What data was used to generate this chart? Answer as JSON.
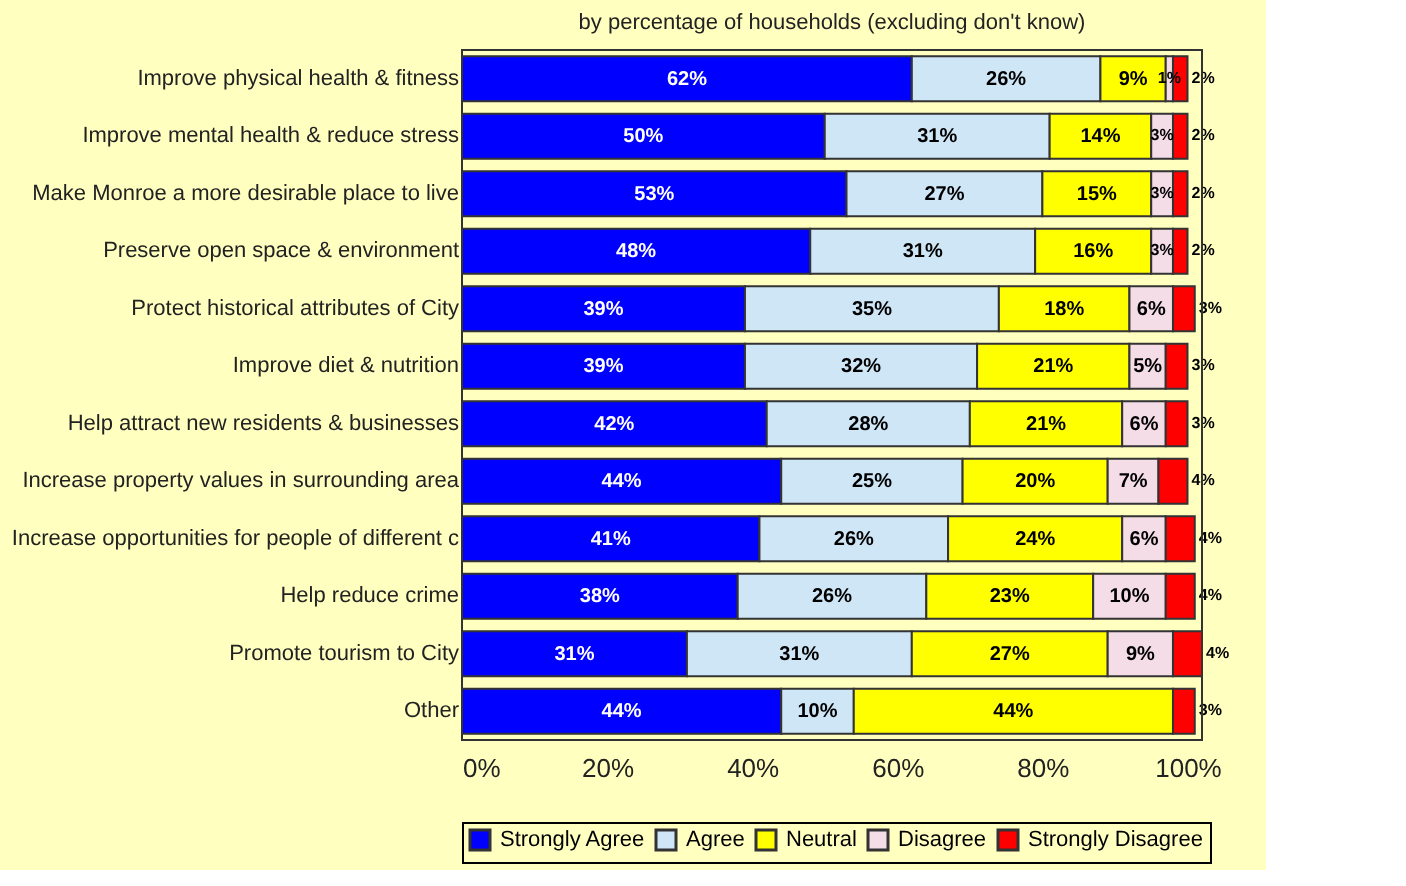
{
  "chart_data": {
    "type": "bar",
    "orientation": "horizontal",
    "stacked": true,
    "subtitle": "by percentage of households (excluding don't know)",
    "categories": [
      "Improve physical health & fitness",
      "Improve mental health & reduce stress",
      "Make Monroe a more desirable place to live",
      "Preserve open space & environment",
      "Protect historical attributes of City",
      "Improve diet & nutrition",
      "Help attract new residents & businesses",
      "Increase property values in surrounding area",
      "Increase opportunities for people of different c",
      "Help reduce crime",
      "Promote tourism to City",
      "Other"
    ],
    "series": [
      {
        "name": "Strongly Agree",
        "color": "#0000ff",
        "values": [
          62,
          50,
          53,
          48,
          39,
          39,
          42,
          44,
          41,
          38,
          31,
          44
        ],
        "value_labels": [
          "62%",
          "50%",
          "53%",
          "48%",
          "39%",
          "39%",
          "42%",
          "44%",
          "41%",
          "38%",
          "31%",
          "44%"
        ]
      },
      {
        "name": "Agree",
        "color": "#cfe6f7",
        "values": [
          26,
          31,
          27,
          31,
          35,
          32,
          28,
          25,
          26,
          26,
          31,
          10
        ],
        "value_labels": [
          "26%",
          "31%",
          "27%",
          "31%",
          "35%",
          "32%",
          "28%",
          "25%",
          "26%",
          "26%",
          "31%",
          "10%"
        ]
      },
      {
        "name": "Neutral",
        "color": "#ffff00",
        "values": [
          9,
          14,
          15,
          16,
          18,
          21,
          21,
          20,
          24,
          23,
          27,
          44
        ],
        "value_labels": [
          "9%",
          "14%",
          "15%",
          "16%",
          "18%",
          "21%",
          "21%",
          "20%",
          "24%",
          "23%",
          "27%",
          "44%"
        ]
      },
      {
        "name": "Disagree",
        "color": "#f5dde8",
        "values": [
          1,
          3,
          3,
          3,
          6,
          5,
          6,
          7,
          6,
          10,
          9,
          null
        ],
        "value_labels": [
          "1%",
          "3%",
          "3%",
          "3%",
          "6%",
          "5%",
          "6%",
          "7%",
          "6%",
          "10%",
          "9%",
          null
        ]
      },
      {
        "name": "Strongly Disagree",
        "color": "#ff0000",
        "values": [
          2,
          2,
          2,
          2,
          3,
          3,
          3,
          4,
          4,
          4,
          4,
          3
        ],
        "value_labels": [
          "2%",
          "2%",
          "2%",
          "2%",
          "3%",
          "3%",
          "3%",
          "4%",
          "4%",
          "4%",
          "4%",
          "3%"
        ]
      }
    ],
    "xlim": [
      0,
      102
    ],
    "xticks": [
      {
        "value": 0,
        "label": "0%"
      },
      {
        "value": 20,
        "label": "20%"
      },
      {
        "value": 40,
        "label": "40%"
      },
      {
        "value": 60,
        "label": "60%"
      },
      {
        "value": 80,
        "label": "80%"
      },
      {
        "value": 100,
        "label": "100%"
      }
    ],
    "grid": false,
    "legend": "bottom"
  }
}
